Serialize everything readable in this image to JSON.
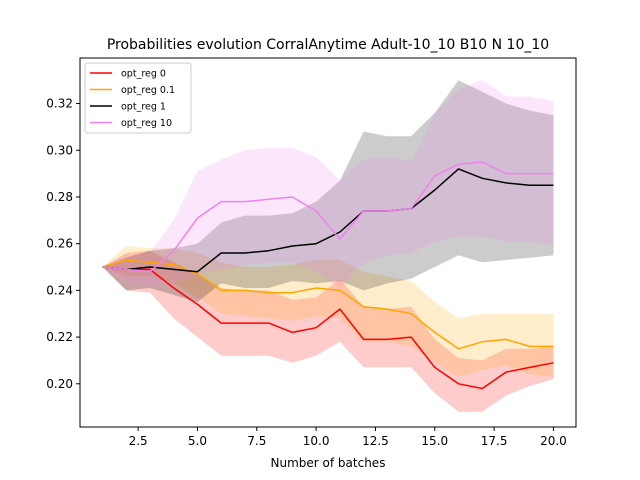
{
  "chart_data": {
    "type": "line",
    "title": "Probabilities evolution CorralAnytime Adult-10_10 B10 N 10_10",
    "xlabel": "Number of batches",
    "ylabel": "",
    "xlim": [
      0.05,
      20.95
    ],
    "ylim": [
      0.1815,
      0.3395
    ],
    "xticks": [
      2.5,
      5.0,
      7.5,
      10.0,
      12.5,
      15.0,
      17.5,
      20.0
    ],
    "xtick_labels": [
      "2.5",
      "5.0",
      "7.5",
      "10.0",
      "12.5",
      "15.0",
      "17.5",
      "20.0"
    ],
    "yticks": [
      0.2,
      0.22,
      0.24,
      0.26,
      0.28,
      0.3,
      0.32
    ],
    "ytick_labels": [
      "0.20",
      "0.22",
      "0.24",
      "0.26",
      "0.28",
      "0.30",
      "0.32"
    ],
    "grid": false,
    "legend_position": "top-left",
    "x": [
      1,
      2,
      3,
      4,
      5,
      6,
      7,
      8,
      9,
      10,
      11,
      12,
      13,
      14,
      15,
      16,
      17,
      18,
      19,
      20
    ],
    "series": [
      {
        "name": "opt_reg 0",
        "color": "#ff0000",
        "values": [
          0.25,
          0.249,
          0.249,
          0.241,
          0.234,
          0.226,
          0.226,
          0.226,
          0.222,
          0.224,
          0.232,
          0.219,
          0.219,
          0.22,
          0.207,
          0.2,
          0.198,
          0.205,
          0.207,
          0.209
        ],
        "lower": [
          0.25,
          0.24,
          0.239,
          0.228,
          0.22,
          0.212,
          0.212,
          0.212,
          0.209,
          0.212,
          0.218,
          0.207,
          0.207,
          0.207,
          0.196,
          0.188,
          0.188,
          0.195,
          0.199,
          0.202
        ],
        "upper": [
          0.25,
          0.256,
          0.257,
          0.252,
          0.247,
          0.241,
          0.24,
          0.24,
          0.236,
          0.237,
          0.245,
          0.233,
          0.232,
          0.233,
          0.219,
          0.211,
          0.21,
          0.215,
          0.215,
          0.216
        ]
      },
      {
        "name": "opt_reg 0.1",
        "color": "#ffa500",
        "values": [
          0.25,
          0.253,
          0.252,
          0.251,
          0.247,
          0.24,
          0.24,
          0.239,
          0.239,
          0.241,
          0.24,
          0.233,
          0.232,
          0.23,
          0.222,
          0.215,
          0.218,
          0.219,
          0.216,
          0.216
        ],
        "lower": [
          0.25,
          0.246,
          0.246,
          0.243,
          0.237,
          0.23,
          0.229,
          0.228,
          0.227,
          0.229,
          0.228,
          0.218,
          0.218,
          0.216,
          0.209,
          0.203,
          0.206,
          0.208,
          0.204,
          0.203
        ],
        "upper": [
          0.25,
          0.259,
          0.258,
          0.258,
          0.256,
          0.252,
          0.25,
          0.25,
          0.251,
          0.253,
          0.253,
          0.248,
          0.246,
          0.244,
          0.235,
          0.228,
          0.23,
          0.23,
          0.23,
          0.23
        ]
      },
      {
        "name": "opt_reg 1",
        "color": "#000000",
        "values": [
          0.25,
          0.249,
          0.25,
          0.249,
          0.248,
          0.256,
          0.256,
          0.257,
          0.259,
          0.26,
          0.265,
          0.274,
          0.274,
          0.275,
          0.283,
          0.292,
          0.288,
          0.286,
          0.285,
          0.285
        ],
        "lower": [
          0.25,
          0.24,
          0.241,
          0.238,
          0.235,
          0.243,
          0.241,
          0.241,
          0.244,
          0.243,
          0.244,
          0.24,
          0.243,
          0.245,
          0.25,
          0.255,
          0.252,
          0.253,
          0.254,
          0.255
        ],
        "upper": [
          0.25,
          0.254,
          0.257,
          0.258,
          0.26,
          0.269,
          0.272,
          0.272,
          0.273,
          0.278,
          0.287,
          0.308,
          0.306,
          0.306,
          0.316,
          0.33,
          0.325,
          0.32,
          0.317,
          0.315
        ]
      },
      {
        "name": "opt_reg 10",
        "color": "#ee82ee",
        "values": [
          0.25,
          0.249,
          0.248,
          0.257,
          0.271,
          0.278,
          0.278,
          0.279,
          0.28,
          0.274,
          0.262,
          0.274,
          0.274,
          0.275,
          0.289,
          0.294,
          0.295,
          0.29,
          0.29,
          0.29
        ],
        "lower": [
          0.25,
          0.244,
          0.242,
          0.243,
          0.247,
          0.249,
          0.251,
          0.252,
          0.252,
          0.248,
          0.241,
          0.252,
          0.255,
          0.256,
          0.261,
          0.263,
          0.263,
          0.261,
          0.261,
          0.259
        ],
        "upper": [
          0.25,
          0.255,
          0.256,
          0.27,
          0.291,
          0.296,
          0.3,
          0.301,
          0.301,
          0.297,
          0.287,
          0.296,
          0.297,
          0.295,
          0.316,
          0.326,
          0.33,
          0.323,
          0.323,
          0.321
        ]
      }
    ]
  }
}
